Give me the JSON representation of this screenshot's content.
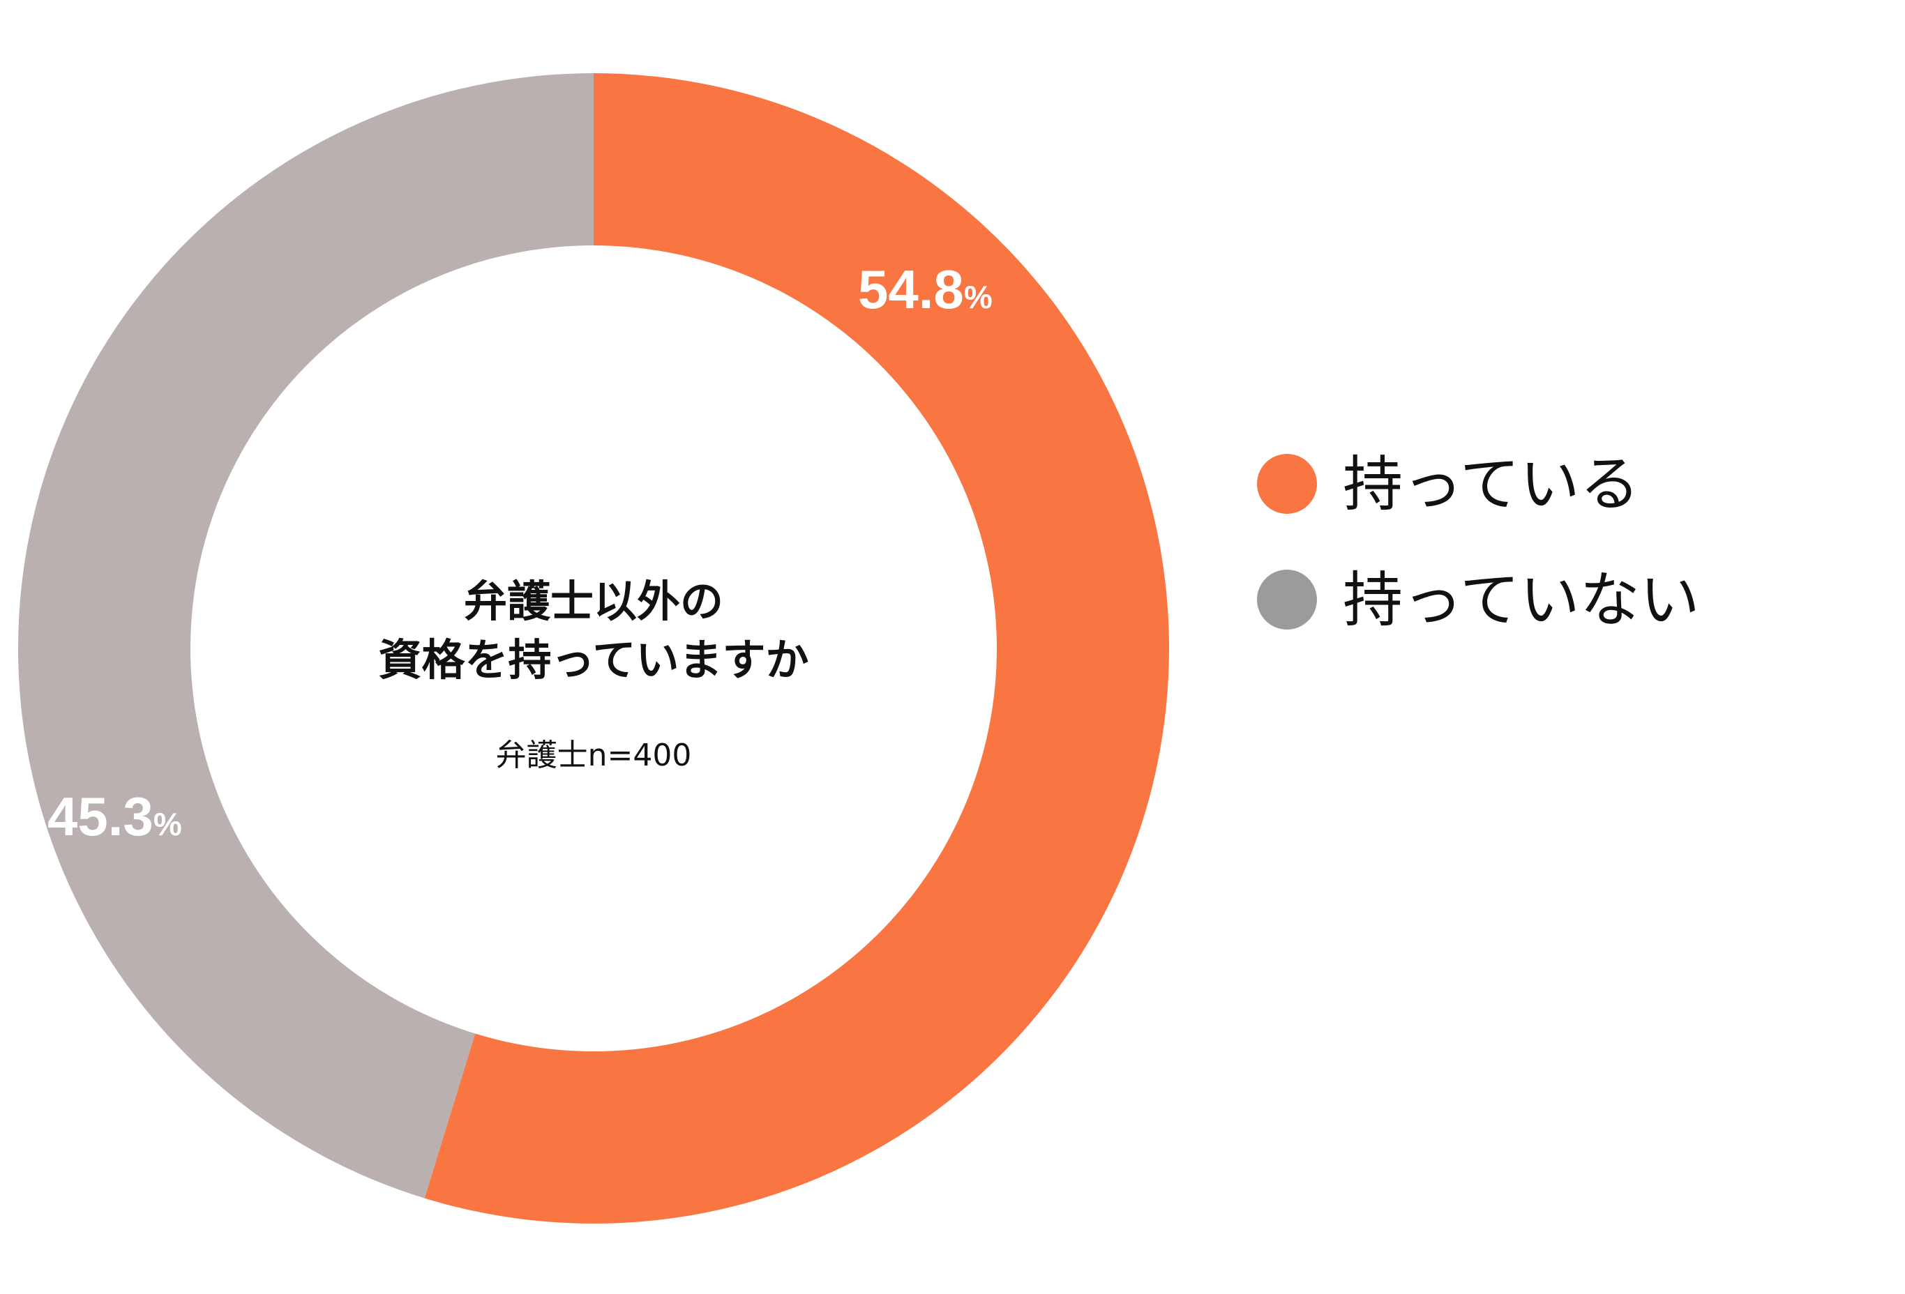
{
  "chart_data": {
    "type": "pie",
    "style": "donut",
    "center_title_lines": [
      "弁護士以外の",
      "資格を持っていますか"
    ],
    "center_subtitle": "弁護士n=400",
    "start_angle": "12 o'clock",
    "direction": "clockwise",
    "slices": [
      {
        "label": "持っている",
        "value": 54.8,
        "value_text": "54.8",
        "unit": "%",
        "color": "#F97541"
      },
      {
        "label": "持っていない",
        "value": 45.3,
        "value_text": "45.3",
        "unit": "%",
        "color": "#BAB0AF"
      }
    ],
    "legend": {
      "position": "right",
      "items": [
        {
          "label": "持っている",
          "color": "#F97541"
        },
        {
          "label": "持っていない",
          "color": "#9B9B9B"
        }
      ]
    }
  }
}
